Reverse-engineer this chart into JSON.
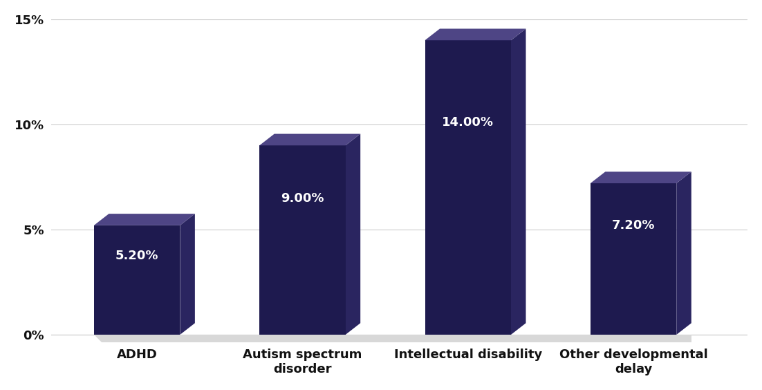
{
  "categories": [
    "ADHD",
    "Autism spectrum\ndisorder",
    "Intellectual disability",
    "Other developmental\ndelay"
  ],
  "values": [
    5.2,
    9.0,
    14.0,
    7.2
  ],
  "labels": [
    "5.20%",
    "9.00%",
    "14.00%",
    "7.20%"
  ],
  "bar_color": "#1e1a4f",
  "bar_top_color": "#4e4585",
  "bar_side_color": "#2a2560",
  "background_color": "#ffffff",
  "ylim": [
    0,
    15
  ],
  "yticks": [
    0,
    5,
    10,
    15
  ],
  "ytick_labels": [
    "0%",
    "5%",
    "10%",
    "15%"
  ],
  "label_fontsize": 13,
  "tick_fontsize": 13,
  "label_color": "#ffffff",
  "grid_color": "#cccccc",
  "shadow_color": "#d8d8d8"
}
